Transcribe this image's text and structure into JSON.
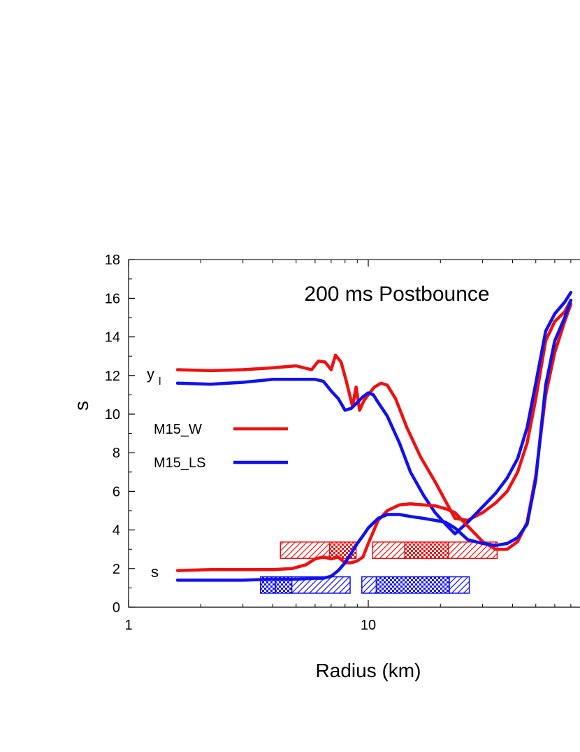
{
  "chart_data": {
    "type": "line",
    "title": "",
    "annotation": "200 ms Postbounce",
    "xlabel": "Radius (km)",
    "ylabel": "s",
    "xscale": "log",
    "xlim": [
      1,
      70
    ],
    "ylim": [
      0,
      18
    ],
    "xticks": [
      {
        "value": 1,
        "label": "1"
      },
      {
        "value": 10,
        "label": "10"
      }
    ],
    "yticks": [
      0,
      2,
      4,
      6,
      8,
      10,
      12,
      14,
      16,
      18
    ],
    "grid": false,
    "legend_position": "left-middle",
    "curve_labels": [
      {
        "text": "y",
        "sub": "l",
        "at": [
          1.06,
          11.8
        ]
      },
      {
        "text": "s",
        "at": [
          1.08,
          1.8
        ]
      }
    ],
    "colors": {
      "M15_W": "#ee1111",
      "M15_LS": "#1111ee"
    },
    "series": [
      {
        "name": "M15_W",
        "quantity": "y_l",
        "x": [
          1.6,
          2.2,
          3.0,
          4.0,
          5.0,
          5.8,
          6.2,
          6.6,
          7.0,
          7.3,
          7.7,
          8.1,
          8.6,
          8.9,
          9.2,
          9.6,
          10.0,
          10.6,
          11.3,
          12.0,
          13.0,
          14.5,
          16.5,
          19.0,
          21.0,
          23.0,
          26.0,
          30.0,
          34.0,
          38.0,
          42.0,
          46.0,
          50.0,
          55.0,
          60.0,
          66.0,
          70.0
        ],
        "y": [
          12.3,
          12.25,
          12.3,
          12.4,
          12.5,
          12.3,
          12.75,
          12.7,
          12.3,
          13.05,
          12.7,
          11.7,
          10.4,
          11.4,
          10.2,
          10.7,
          11.0,
          11.4,
          11.6,
          11.5,
          10.8,
          9.3,
          7.8,
          6.5,
          5.5,
          4.6,
          4.5,
          4.9,
          5.4,
          6.0,
          7.0,
          8.5,
          10.8,
          13.8,
          14.8,
          15.3,
          15.9
        ]
      },
      {
        "name": "M15_LS",
        "quantity": "y_l",
        "x": [
          1.6,
          2.2,
          3.0,
          4.0,
          5.0,
          6.0,
          6.5,
          7.0,
          7.5,
          8.0,
          8.5,
          9.0,
          9.5,
          10.0,
          10.5,
          11.0,
          12.0,
          13.5,
          15.0,
          17.0,
          19.0,
          21.0,
          23.0,
          26.0,
          30.0,
          34.0,
          38.0,
          42.0,
          46.0,
          50.0,
          55.0,
          60.0,
          66.0,
          70.0
        ],
        "y": [
          11.6,
          11.55,
          11.65,
          11.8,
          11.8,
          11.8,
          11.7,
          11.2,
          10.8,
          10.2,
          10.3,
          10.6,
          10.9,
          11.1,
          11.0,
          10.6,
          9.9,
          8.5,
          7.0,
          5.8,
          4.9,
          4.3,
          3.8,
          4.4,
          5.2,
          5.9,
          6.7,
          7.7,
          9.3,
          11.6,
          14.3,
          15.2,
          15.8,
          16.3
        ]
      },
      {
        "name": "M15_W",
        "quantity": "s",
        "x": [
          1.6,
          2.2,
          3.0,
          4.0,
          4.8,
          5.5,
          6.0,
          6.5,
          7.0,
          7.5,
          8.0,
          8.5,
          9.0,
          9.5,
          10.0,
          11.0,
          12.0,
          13.5,
          15.0,
          17.0,
          19.0,
          21.0,
          23.0,
          26.0,
          30.0,
          34.0,
          38.0,
          42.0,
          46.0,
          50.0,
          55.0,
          60.0,
          66.0,
          70.0
        ],
        "y": [
          1.9,
          1.95,
          1.95,
          1.95,
          2.0,
          2.2,
          2.5,
          2.6,
          2.5,
          2.6,
          2.3,
          2.3,
          2.4,
          2.6,
          3.3,
          4.5,
          5.0,
          5.3,
          5.35,
          5.3,
          5.25,
          5.1,
          4.9,
          4.2,
          3.4,
          3.0,
          3.0,
          3.4,
          4.4,
          6.8,
          11.0,
          13.2,
          14.8,
          15.7
        ]
      },
      {
        "name": "M15_LS",
        "quantity": "s",
        "x": [
          1.6,
          2.2,
          3.0,
          4.0,
          5.0,
          6.0,
          6.5,
          7.0,
          7.5,
          8.0,
          8.5,
          9.0,
          9.5,
          10.0,
          11.0,
          12.0,
          13.5,
          15.0,
          17.0,
          19.0,
          21.0,
          23.0,
          26.0,
          30.0,
          34.0,
          38.0,
          42.0,
          46.0,
          50.0,
          55.0,
          60.0,
          66.0,
          70.0
        ],
        "y": [
          1.4,
          1.4,
          1.4,
          1.45,
          1.45,
          1.5,
          1.5,
          1.6,
          1.9,
          2.3,
          2.8,
          3.3,
          3.7,
          4.1,
          4.6,
          4.8,
          4.8,
          4.7,
          4.6,
          4.5,
          4.4,
          4.1,
          3.5,
          3.3,
          3.2,
          3.3,
          3.6,
          4.3,
          6.6,
          11.5,
          13.8,
          15.0,
          15.9
        ]
      }
    ],
    "bars": [
      {
        "series": "M15_W",
        "y_center": 2.95,
        "height": 0.85,
        "segments": [
          {
            "x0": 4.3,
            "x1": 6.9,
            "pattern": "hatch"
          },
          {
            "x0": 6.9,
            "x1": 8.9,
            "pattern": "checker"
          },
          {
            "x0": 10.4,
            "x1": 14.2,
            "pattern": "hatch"
          },
          {
            "x0": 14.2,
            "x1": 21.6,
            "pattern": "checker"
          },
          {
            "x0": 21.6,
            "x1": 34.5,
            "pattern": "hatch"
          }
        ]
      },
      {
        "series": "M15_LS",
        "y_center": 1.15,
        "height": 0.85,
        "segments": [
          {
            "x0": 3.55,
            "x1": 4.1,
            "pattern": "checker"
          },
          {
            "x0": 4.1,
            "x1": 4.8,
            "pattern": "checker"
          },
          {
            "x0": 4.8,
            "x1": 8.4,
            "pattern": "hatch"
          },
          {
            "x0": 9.4,
            "x1": 10.8,
            "pattern": "hatch"
          },
          {
            "x0": 10.8,
            "x1": 21.8,
            "pattern": "checker"
          },
          {
            "x0": 21.8,
            "x1": 26.4,
            "pattern": "hatch"
          }
        ]
      }
    ]
  }
}
